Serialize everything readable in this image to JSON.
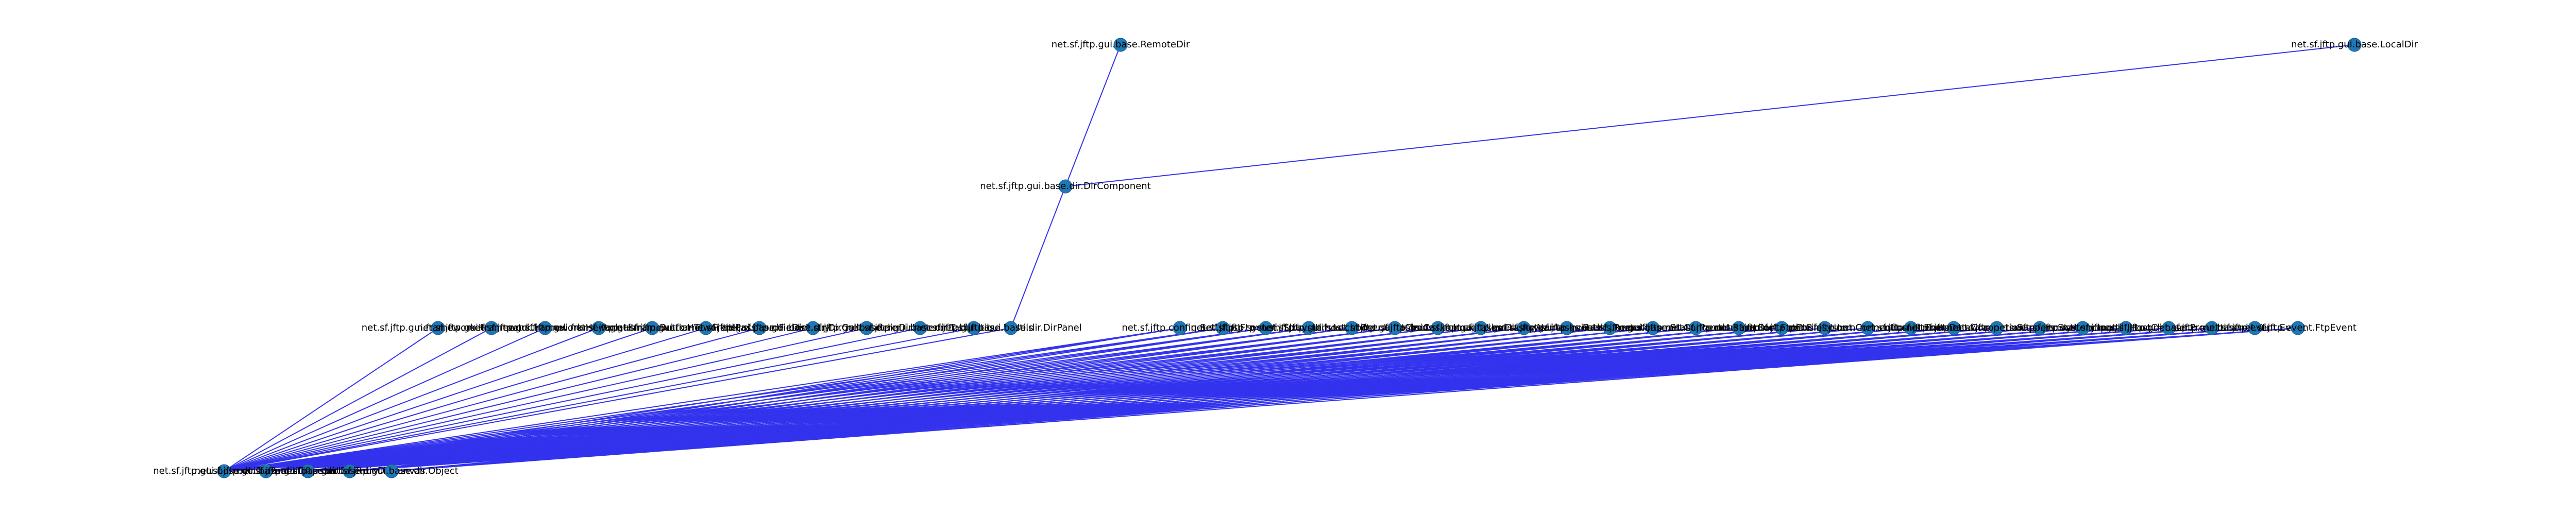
{
  "graph": {
    "node_color": "#1f77b4",
    "edge_color": "#3333ee",
    "nodes": [
      {
        "id": "remote_dir",
        "label": "net.sf.jftp.gui.base.RemoteDir",
        "rank": 0
      },
      {
        "id": "local_dir",
        "label": "net.sf.jftp.gui.base.LocalDir",
        "rank": 0
      },
      {
        "id": "dir_component",
        "label": "net.sf.jftp.gui.base.dir.DirComponent",
        "rank": 1
      },
      {
        "id": "r2_01",
        "label": "net.sf.jftp.gui.framework.HFrame",
        "rank": 2
      },
      {
        "id": "r2_02",
        "label": "net.sf.jftp.gui.framework.HPanel",
        "rank": 2
      },
      {
        "id": "r2_03",
        "label": "net.sf.jftp.gui.framework.HImage",
        "rank": 2
      },
      {
        "id": "r2_04",
        "label": "net.sf.jftp.gui.framework.HImageButton",
        "rank": 2
      },
      {
        "id": "r2_05",
        "label": "net.sf.jftp.gui.framework.HTextField",
        "rank": 2
      },
      {
        "id": "r2_06",
        "label": "net.sf.jftp.gui.framework.HPasswordField",
        "rank": 2
      },
      {
        "id": "r2_07",
        "label": "net.sf.jftp.gui.base.dir.DirEntry",
        "rank": 2
      },
      {
        "id": "r2_08",
        "label": "net.sf.jftp.gui.base.dir.DirCellRenderer",
        "rank": 2
      },
      {
        "id": "r2_09",
        "label": "net.sf.jftp.gui.base.dir.DirLister",
        "rank": 2
      },
      {
        "id": "r2_10",
        "label": "net.sf.jftp.gui.base.dir.TableUtils",
        "rank": 2
      },
      {
        "id": "r2_11",
        "label": "net.sf.jftp.gui.base.UIUtils",
        "rank": 2
      },
      {
        "id": "dir_panel",
        "label": "net.sf.jftp.gui.base.dir.DirPanel",
        "rank": 2
      },
      {
        "id": "r2_13",
        "label": "net.sf.jftp.config.Settings",
        "rank": 2
      },
      {
        "id": "r2_14",
        "label": "net.sf.jftp.JFtp",
        "rank": 2
      },
      {
        "id": "r2_15",
        "label": "net.sf.jftp.system.StringUtils",
        "rank": 2
      },
      {
        "id": "r2_16",
        "label": "net.sf.jftp.system.LocalIO",
        "rank": 2
      },
      {
        "id": "r2_17",
        "label": "net.sf.jftp.gui.hostchooser.HostChooser",
        "rank": 2
      },
      {
        "id": "r2_18",
        "label": "net.sf.jftp.gui.tasks.Creator",
        "rank": 2
      },
      {
        "id": "r2_19",
        "label": "net.sf.jftp.gui.tasks.ImageViewer",
        "rank": 2
      },
      {
        "id": "r2_20",
        "label": "net.sf.jftp.gui.tasks.Displayer",
        "rank": 2
      },
      {
        "id": "r2_21",
        "label": "net.sf.jftp.gui.tasks.NameChooser",
        "rank": 2
      },
      {
        "id": "r2_22",
        "label": "net.sf.jftp.gui.tasks.PathChanger",
        "rank": 2
      },
      {
        "id": "r2_23",
        "label": "net.sf.jftp.gui.tasks.RemoteCommand",
        "rank": 2
      },
      {
        "id": "r2_24",
        "label": "net.sf.jftp.gui.base.StatusPanel",
        "rank": 2
      },
      {
        "id": "r2_25",
        "label": "net.sf.jftp.net.ConnectionHandler",
        "rank": 2
      },
      {
        "id": "r2_26",
        "label": "net.sf.jftp.net.BasicConnection",
        "rank": 2
      },
      {
        "id": "r2_27",
        "label": "net.sf.jftp.net.FtpConnection",
        "rank": 2
      },
      {
        "id": "r2_28",
        "label": "net.sf.jftp.net.FilesystemConnection",
        "rank": 2
      },
      {
        "id": "r2_29",
        "label": "net.sf.jftp.net.ConnectionListener",
        "rank": 2
      },
      {
        "id": "r2_30",
        "label": "net.sf.jftp.net.Transfer",
        "rank": 2
      },
      {
        "id": "r2_31",
        "label": "net.sf.jftp.net.DataConnection",
        "rank": 2
      },
      {
        "id": "r2_32",
        "label": "net.sf.jftp.net.wrappers.SftpConnection",
        "rank": 2
      },
      {
        "id": "r2_33",
        "label": "net.sf.jftp.net.wrappers.StartConnection",
        "rank": 2
      },
      {
        "id": "r2_34",
        "label": "net.sf.jftp.system.logging.Log",
        "rank": 2
      },
      {
        "id": "r2_35",
        "label": "net.sf.jftp.util.JHostChooser",
        "rank": 2
      },
      {
        "id": "r2_36",
        "label": "net.sf.jftp.gui.base.Properties",
        "rank": 2
      },
      {
        "id": "r2_37",
        "label": "net.sf.jftp.gui.base.dir.Dir",
        "rank": 2
      },
      {
        "id": "r2_38",
        "label": "net.sf.jftp.event.Event",
        "rank": 2
      },
      {
        "id": "r2_39",
        "label": "net.sf.jftp.event.FtpEvent",
        "rank": 2
      },
      {
        "id": "r3_01",
        "label": "net.sf.jftp.gui.base.dir.DirPanel",
        "rank": 3
      },
      {
        "id": "r3_02",
        "label": "net.sf.jftp.gui.base.dir.DirLister",
        "rank": 3
      },
      {
        "id": "r3_03",
        "label": "net.sf.jftp.gui.base.dir.DirEntry",
        "rank": 3
      },
      {
        "id": "r3_04",
        "label": "net.sf.jftp.gui.base.dir.DirCanvas",
        "rank": 3
      },
      {
        "id": "r3_05",
        "label": "net.sf.jftp.gui.base.dir.Object",
        "rank": 3
      }
    ],
    "edges": [
      [
        "remote_dir",
        "dir_component"
      ],
      [
        "local_dir",
        "dir_component"
      ],
      [
        "dir_component",
        "dir_panel"
      ],
      [
        "r2_01",
        "r3_01"
      ],
      [
        "r2_02",
        "r3_01"
      ],
      [
        "r2_03",
        "r3_01"
      ],
      [
        "r2_04",
        "r3_01"
      ],
      [
        "r2_05",
        "r3_01"
      ],
      [
        "r2_06",
        "r3_01"
      ],
      [
        "r2_07",
        "r3_01"
      ],
      [
        "r2_08",
        "r3_01"
      ],
      [
        "r2_09",
        "r3_01"
      ],
      [
        "r2_10",
        "r3_01"
      ],
      [
        "r2_11",
        "r3_01"
      ],
      [
        "dir_panel",
        "r3_01"
      ],
      [
        "r2_13",
        "r3_01"
      ],
      [
        "r2_14",
        "r3_01"
      ],
      [
        "r2_15",
        "r3_01"
      ],
      [
        "r2_16",
        "r3_01"
      ],
      [
        "r2_17",
        "r3_01"
      ],
      [
        "r2_18",
        "r3_01"
      ],
      [
        "r2_19",
        "r3_01"
      ],
      [
        "r2_20",
        "r3_01"
      ],
      [
        "r2_21",
        "r3_01"
      ],
      [
        "r2_22",
        "r3_01"
      ],
      [
        "r2_23",
        "r3_01"
      ],
      [
        "r2_24",
        "r3_01"
      ],
      [
        "r2_25",
        "r3_01"
      ],
      [
        "r2_26",
        "r3_01"
      ],
      [
        "r2_27",
        "r3_01"
      ],
      [
        "r2_28",
        "r3_01"
      ],
      [
        "r2_29",
        "r3_01"
      ],
      [
        "r2_30",
        "r3_01"
      ],
      [
        "r2_31",
        "r3_01"
      ],
      [
        "r2_32",
        "r3_01"
      ],
      [
        "r2_33",
        "r3_01"
      ],
      [
        "r2_34",
        "r3_01"
      ],
      [
        "r2_35",
        "r3_01"
      ],
      [
        "r2_36",
        "r3_01"
      ],
      [
        "r2_37",
        "r3_01"
      ],
      [
        "r2_38",
        "r3_01"
      ],
      [
        "r2_39",
        "r3_01"
      ],
      [
        "r2_13",
        "r3_02"
      ],
      [
        "r2_14",
        "r3_02"
      ],
      [
        "r2_15",
        "r3_02"
      ],
      [
        "r2_16",
        "r3_02"
      ],
      [
        "r2_17",
        "r3_02"
      ],
      [
        "r2_18",
        "r3_02"
      ],
      [
        "r2_19",
        "r3_02"
      ],
      [
        "r2_20",
        "r3_02"
      ],
      [
        "r2_21",
        "r3_02"
      ],
      [
        "r2_22",
        "r3_02"
      ],
      [
        "r2_23",
        "r3_02"
      ],
      [
        "r2_24",
        "r3_02"
      ],
      [
        "r2_25",
        "r3_02"
      ],
      [
        "r2_26",
        "r3_02"
      ],
      [
        "r2_27",
        "r3_02"
      ],
      [
        "r2_28",
        "r3_02"
      ],
      [
        "r2_29",
        "r3_02"
      ],
      [
        "r2_30",
        "r3_02"
      ],
      [
        "r2_31",
        "r3_02"
      ],
      [
        "r2_32",
        "r3_02"
      ],
      [
        "r2_33",
        "r3_02"
      ],
      [
        "r2_34",
        "r3_02"
      ],
      [
        "r2_35",
        "r3_02"
      ],
      [
        "r2_36",
        "r3_02"
      ],
      [
        "r2_37",
        "r3_02"
      ],
      [
        "r2_38",
        "r3_02"
      ],
      [
        "r2_39",
        "r3_02"
      ],
      [
        "r2_13",
        "r3_03"
      ],
      [
        "r2_14",
        "r3_03"
      ],
      [
        "r2_15",
        "r3_03"
      ],
      [
        "r2_16",
        "r3_03"
      ],
      [
        "r2_17",
        "r3_03"
      ],
      [
        "r2_18",
        "r3_03"
      ],
      [
        "r2_19",
        "r3_03"
      ],
      [
        "r2_20",
        "r3_03"
      ],
      [
        "r2_21",
        "r3_03"
      ],
      [
        "r2_22",
        "r3_03"
      ],
      [
        "r2_23",
        "r3_03"
      ],
      [
        "r2_24",
        "r3_03"
      ],
      [
        "r2_25",
        "r3_03"
      ],
      [
        "r2_26",
        "r3_03"
      ],
      [
        "r2_27",
        "r3_03"
      ],
      [
        "r2_28",
        "r3_03"
      ],
      [
        "r2_29",
        "r3_03"
      ],
      [
        "r2_30",
        "r3_03"
      ],
      [
        "r2_31",
        "r3_03"
      ],
      [
        "r2_32",
        "r3_03"
      ],
      [
        "r2_33",
        "r3_03"
      ],
      [
        "r2_34",
        "r3_03"
      ],
      [
        "r2_35",
        "r3_03"
      ],
      [
        "r2_36",
        "r3_03"
      ],
      [
        "r2_37",
        "r3_03"
      ],
      [
        "r2_38",
        "r3_03"
      ],
      [
        "r2_39",
        "r3_03"
      ],
      [
        "r2_25",
        "r3_04"
      ],
      [
        "r2_26",
        "r3_04"
      ],
      [
        "r2_27",
        "r3_04"
      ],
      [
        "r2_28",
        "r3_04"
      ],
      [
        "r2_29",
        "r3_04"
      ],
      [
        "r2_30",
        "r3_04"
      ],
      [
        "r2_31",
        "r3_04"
      ],
      [
        "r2_32",
        "r3_04"
      ],
      [
        "r2_33",
        "r3_04"
      ],
      [
        "r2_34",
        "r3_04"
      ],
      [
        "r2_35",
        "r3_04"
      ],
      [
        "r2_36",
        "r3_04"
      ],
      [
        "r2_37",
        "r3_04"
      ],
      [
        "r2_38",
        "r3_04"
      ],
      [
        "r2_39",
        "r3_04"
      ],
      [
        "r2_30",
        "r3_05"
      ],
      [
        "r2_31",
        "r3_05"
      ],
      [
        "r2_32",
        "r3_05"
      ],
      [
        "r2_33",
        "r3_05"
      ],
      [
        "r2_34",
        "r3_05"
      ],
      [
        "r2_35",
        "r3_05"
      ],
      [
        "r2_36",
        "r3_05"
      ],
      [
        "r2_37",
        "r3_05"
      ],
      [
        "r2_38",
        "r3_05"
      ],
      [
        "r2_39",
        "r3_05"
      ]
    ]
  }
}
